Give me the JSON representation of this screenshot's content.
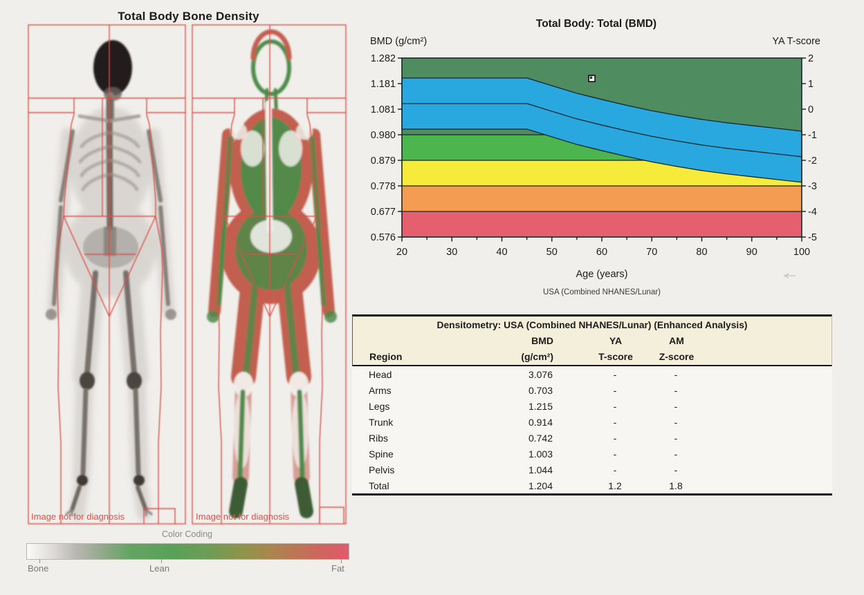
{
  "page": {
    "background": "#f1efec"
  },
  "scan_panel": {
    "title": "Total Body Bone Density",
    "left_scan_caption": "Image not for diagnosis",
    "right_scan_caption": "Image not for diagnosis",
    "roi_color": "#dc5046",
    "color_coding": {
      "title": "Color Coding",
      "labels": [
        "Bone",
        "Lean",
        "Fat"
      ],
      "gradient": [
        [
          0,
          "#fbfbfa"
        ],
        [
          8,
          "#dedbd8"
        ],
        [
          15,
          "#b9b8b4"
        ],
        [
          24,
          "#8fa887"
        ],
        [
          32,
          "#63a563"
        ],
        [
          45,
          "#58a158"
        ],
        [
          57,
          "#6f9c54"
        ],
        [
          67,
          "#8f9449"
        ],
        [
          75,
          "#a8874d"
        ],
        [
          84,
          "#bd7555"
        ],
        [
          93,
          "#d26260"
        ],
        [
          100,
          "#e15a6d"
        ]
      ]
    }
  },
  "chart_data": {
    "type": "area",
    "title": "Total Body: Total (BMD)",
    "y_left_label": "BMD (g/cm²)",
    "y_right_label": "YA T-score",
    "x_label": "Age (years)",
    "footnote": "USA (Combined NHANES/Lunar)",
    "x_ticks": [
      20,
      30,
      40,
      50,
      60,
      70,
      80,
      90,
      100
    ],
    "x_minor_tick_step": 5,
    "y_left_ticks": [
      "1.282",
      "1.181",
      "1.081",
      "0.980",
      "0.879",
      "0.778",
      "0.677",
      "0.576"
    ],
    "y_right_ticks": [
      "2",
      "1",
      "0",
      "-1",
      "-2",
      "-3",
      "-4",
      "-5"
    ],
    "x_range": [
      20,
      100
    ],
    "bmd_range": [
      0.576,
      1.282
    ],
    "tscore_range": [
      -5,
      2
    ],
    "bmd_per_tscore": 0.101,
    "grid": false,
    "background_color": "#4f8d60",
    "boundary_color": "#15262e",
    "flat_bands": [
      {
        "name": "green",
        "t_top": -1,
        "t_bottom": -2,
        "color": "#4db54e"
      },
      {
        "name": "yellow",
        "t_top": -2,
        "t_bottom": -3,
        "color": "#f6ea3a"
      },
      {
        "name": "orange",
        "t_top": -3,
        "t_bottom": -4,
        "color": "#f59c53"
      },
      {
        "name": "red",
        "t_top": -4,
        "t_bottom": -5,
        "color": "#e55f6e"
      }
    ],
    "blue_band": {
      "description": "age-matched reference range (mean ± 1 SD)",
      "color": "#29a8e0",
      "ages": [
        20,
        45,
        50,
        55,
        60,
        65,
        70,
        75,
        80,
        85,
        90,
        95,
        100
      ],
      "upper_t": [
        1.22,
        1.22,
        0.92,
        0.62,
        0.38,
        0.15,
        -0.06,
        -0.24,
        -0.4,
        -0.53,
        -0.64,
        -0.75,
        -0.86
      ],
      "mean_t": [
        0.22,
        0.22,
        -0.08,
        -0.38,
        -0.62,
        -0.85,
        -1.06,
        -1.24,
        -1.4,
        -1.53,
        -1.64,
        -1.75,
        -1.86
      ],
      "lower_t": [
        -0.78,
        -0.78,
        -1.08,
        -1.38,
        -1.62,
        -1.85,
        -2.06,
        -2.24,
        -2.4,
        -2.53,
        -2.64,
        -2.75,
        -2.86
      ]
    },
    "patient_point": {
      "age": 58,
      "bmd": 1.204,
      "t_score": 1.2,
      "marker": "white square with black border and inner dot"
    }
  },
  "table": {
    "title": "Densitometry: USA (Combined NHANES/Lunar) (Enhanced Analysis)",
    "headers": {
      "region": "Region",
      "bmd_line1": "BMD",
      "bmd_line2": "(g/cm²)",
      "ya_line1": "YA",
      "ya_line2": "T-score",
      "am_line1": "AM",
      "am_line2": "Z-score"
    },
    "rows": [
      {
        "region": "Head",
        "bmd": "3.076",
        "t": "-",
        "z": "-"
      },
      {
        "region": "Arms",
        "bmd": "0.703",
        "t": "-",
        "z": "-"
      },
      {
        "region": "Legs",
        "bmd": "1.215",
        "t": "-",
        "z": "-"
      },
      {
        "region": "Trunk",
        "bmd": "0.914",
        "t": "-",
        "z": "-"
      },
      {
        "region": "Ribs",
        "bmd": "0.742",
        "t": "-",
        "z": "-"
      },
      {
        "region": "Spine",
        "bmd": "1.003",
        "t": "-",
        "z": "-"
      },
      {
        "region": "Pelvis",
        "bmd": "1.044",
        "t": "-",
        "z": "-"
      },
      {
        "region": "Total",
        "bmd": "1.204",
        "t": "1.2",
        "z": "1.8"
      }
    ]
  }
}
